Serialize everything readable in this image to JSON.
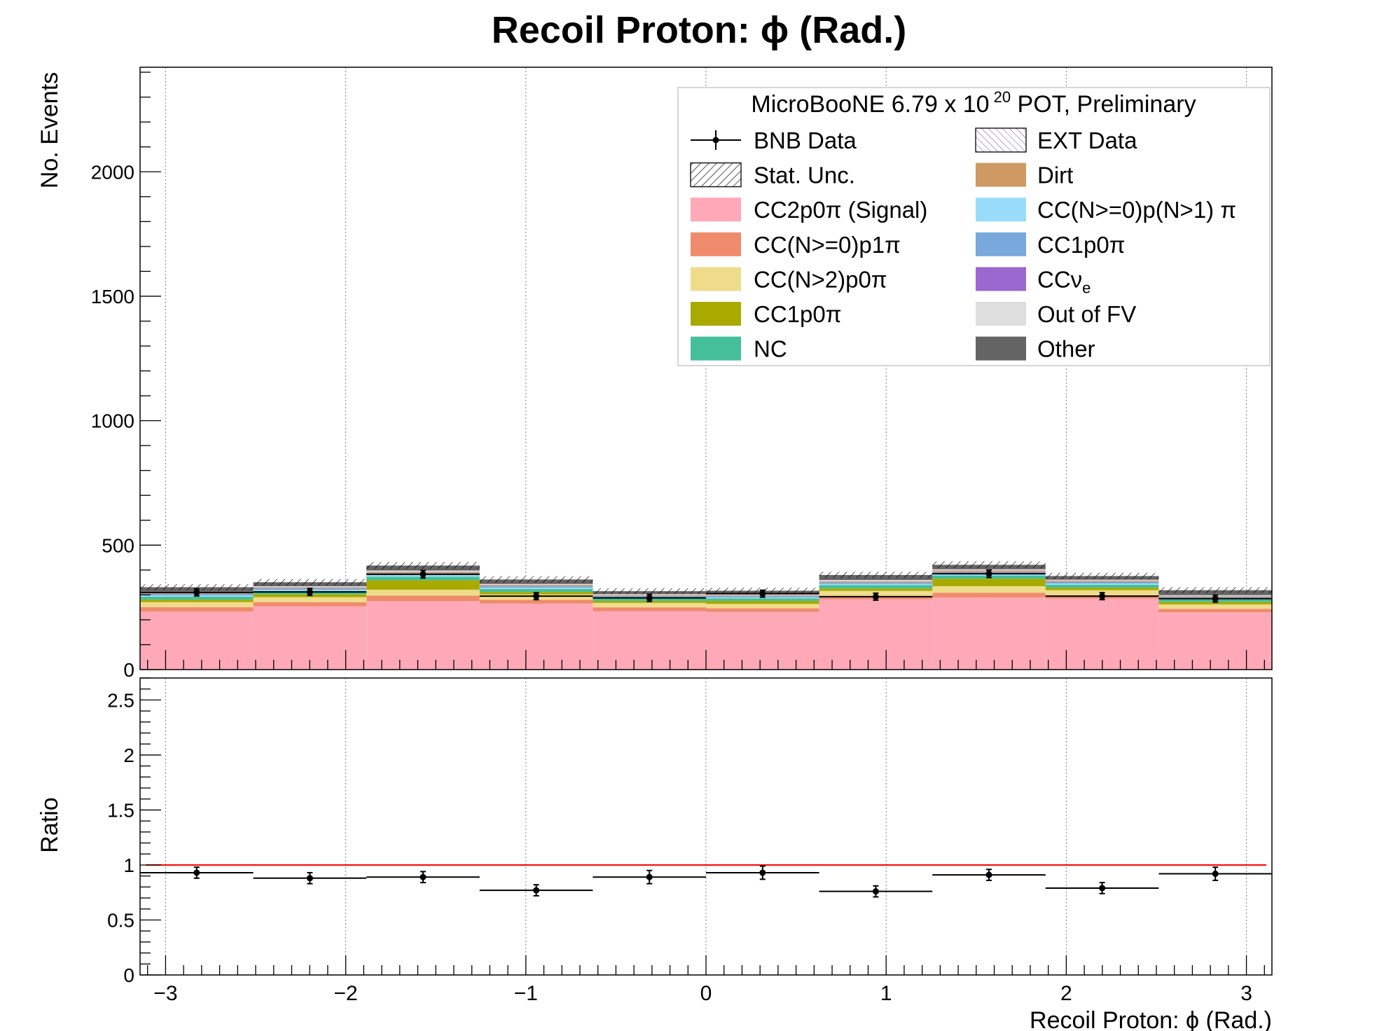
{
  "title": "Recoil Proton:  ϕ (Rad.)",
  "chart_data": [
    {
      "panel": "main",
      "type": "bar",
      "stacked": true,
      "ylabel": "No. Events",
      "xlim": [
        -3.1416,
        3.1416
      ],
      "ylim": [
        0,
        2420
      ],
      "y_ticks": [
        0,
        500,
        1000,
        1500,
        2000
      ],
      "bin_edges": [
        -3.1416,
        -2.5133,
        -1.885,
        -1.2566,
        -0.6283,
        0,
        0.6283,
        1.2566,
        1.885,
        2.5133,
        3.1416
      ],
      "series": [
        {
          "key": "signal",
          "name": "CC2p0π (Signal)",
          "color": "#ffa9b8",
          "values": [
            233,
            254,
            275,
            265,
            235,
            232,
            282,
            290,
            285,
            230
          ]
        },
        {
          "key": "ccnp1pi",
          "name": "CC(N>=0)p1π",
          "color": "#ef8a6c",
          "values": [
            18,
            17,
            22,
            15,
            15,
            14,
            14,
            19,
            14,
            14
          ]
        },
        {
          "key": "ccn2p0pi",
          "name": "CC(N>2)p0π",
          "color": "#efdc8b",
          "values": [
            20,
            20,
            24,
            22,
            18,
            18,
            20,
            26,
            20,
            18
          ]
        },
        {
          "key": "cc1p0pi_a",
          "name": "CC1p0π",
          "color": "#a8aa00",
          "values": [
            10,
            12,
            38,
            10,
            8,
            12,
            10,
            30,
            10,
            10
          ]
        },
        {
          "key": "nc",
          "name": "NC",
          "color": "#45bf9a",
          "values": [
            12,
            12,
            14,
            12,
            10,
            10,
            13,
            13,
            12,
            10
          ]
        },
        {
          "key": "ccnpnpi",
          "name": "CC(N>=0)p(N>1) π",
          "color": "#99dcfa",
          "values": [
            5,
            5,
            6,
            5,
            4,
            4,
            5,
            6,
            5,
            4
          ]
        },
        {
          "key": "cc1p0pi_b",
          "name": "CC1p0π",
          "color": "#78a8dc",
          "values": [
            6,
            6,
            8,
            6,
            5,
            5,
            6,
            8,
            6,
            5
          ]
        },
        {
          "key": "dirt",
          "name": "Dirt",
          "color": "#cf9964",
          "values": [
            4,
            4,
            5,
            4,
            3,
            3,
            4,
            5,
            4,
            3
          ]
        },
        {
          "key": "ccnue",
          "name": "CCν",
          "color": "#9a68cf",
          "values": [
            1,
            1,
            1,
            1,
            1,
            1,
            1,
            1,
            1,
            1
          ]
        },
        {
          "key": "outfv",
          "name": "Out of FV",
          "color": "#dedede",
          "values": [
            4,
            4,
            5,
            4,
            4,
            4,
            5,
            5,
            4,
            4
          ]
        },
        {
          "key": "other",
          "name": "Other",
          "color": "#646464",
          "values": [
            18,
            16,
            20,
            18,
            12,
            14,
            20,
            18,
            15,
            20
          ]
        }
      ],
      "stat_unc": [
        12,
        13,
        14,
        13,
        12,
        12,
        13,
        14,
        13,
        12
      ],
      "bnb_data": {
        "name": "BNB Data",
        "values": [
          310,
          312,
          383,
          295,
          288,
          305,
          293,
          385,
          295,
          285
        ],
        "errors": [
          14,
          14,
          15,
          14,
          14,
          14,
          14,
          15,
          14,
          14
        ]
      },
      "ext_data": {
        "name": "EXT Data"
      },
      "legend": {
        "placement": "top-right",
        "header_main": "MicroBooNE 6.79 x 10",
        "header_exp": "20",
        "header_tail": " POT, Preliminary",
        "stat_label": "Stat. Unc.",
        "ccnue_sub": "e"
      }
    },
    {
      "panel": "ratio",
      "type": "scatter",
      "ylabel": "Ratio",
      "xlabel": "Recoil Proton: ϕ (Rad.)",
      "xlim": [
        -3.1416,
        3.1416
      ],
      "ylim": [
        0,
        2.7
      ],
      "y_ticks": [
        0,
        0.5,
        1,
        1.5,
        2,
        2.5
      ],
      "y_tick_labels": [
        "0",
        "0.5",
        "1",
        "1.5",
        "2",
        "2.5"
      ],
      "x_ticks": [
        -3,
        -2,
        -1,
        0,
        1,
        2,
        3
      ],
      "x_tick_labels": [
        "−3",
        "−2",
        "−1",
        "0",
        "1",
        "2",
        "3"
      ],
      "reference_line": {
        "y": 1,
        "color": "#ff0000"
      },
      "values": [
        0.93,
        0.88,
        0.89,
        0.77,
        0.89,
        0.93,
        0.76,
        0.91,
        0.79,
        0.92
      ],
      "errors": [
        0.05,
        0.05,
        0.05,
        0.05,
        0.06,
        0.06,
        0.05,
        0.05,
        0.05,
        0.06
      ]
    }
  ],
  "colors": {
    "axis": "#000000",
    "grid": "#808080",
    "frame_bg": "#ffffff",
    "legend_border": "#c8c8c8"
  },
  "icons": {
    "data_marker": "point-with-error-bars-icon",
    "stat_unc": "hatched-box-icon",
    "ext": "cross-hatched-box-icon"
  }
}
